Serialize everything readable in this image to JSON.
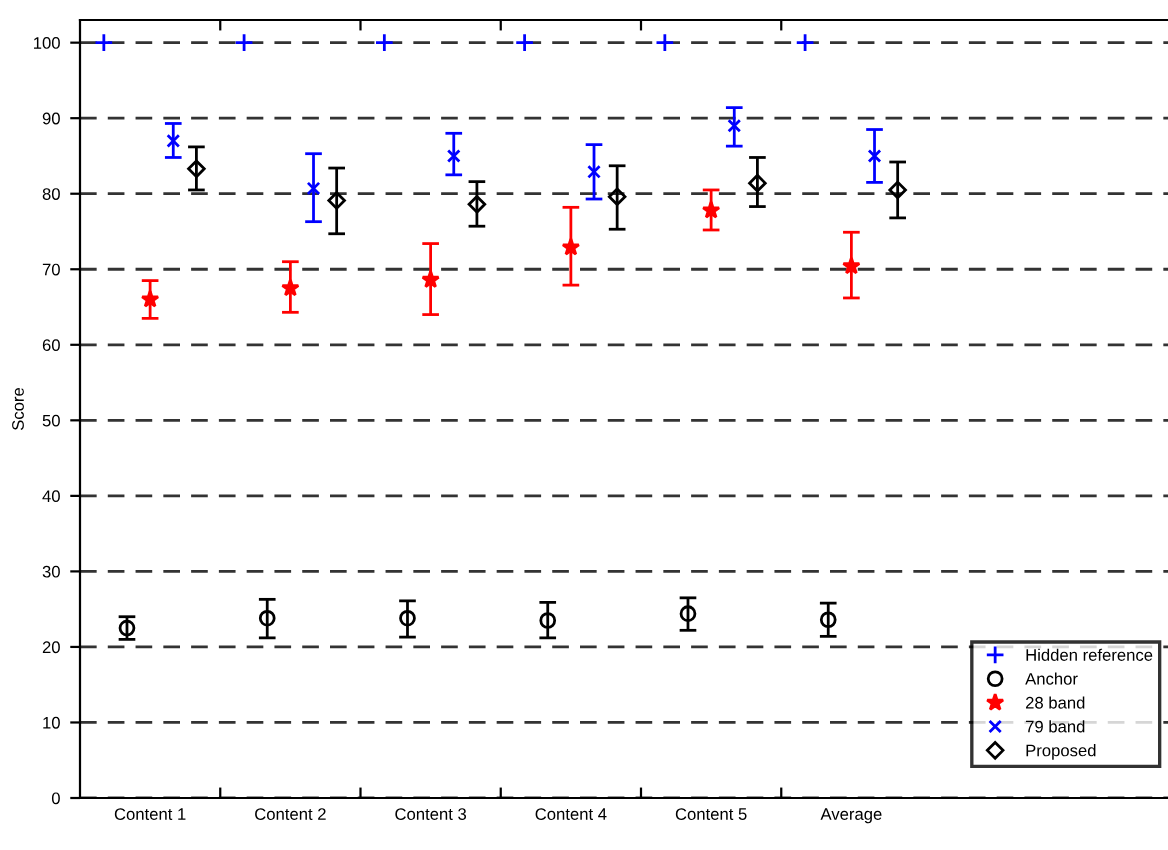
{
  "chart_data": {
    "type": "scatter",
    "ylabel": "Score",
    "categories": [
      "Content 1",
      "Content 2",
      "Content 3",
      "Content 4",
      "Content 5",
      "Average"
    ],
    "series": [
      {
        "name": "Hidden reference",
        "color": "#0000ff",
        "marker": "cross",
        "values": [
          100,
          100,
          100,
          100,
          100,
          100
        ]
      },
      {
        "name": "Anchor",
        "color": "#000000",
        "marker": "circle",
        "values": [
          22.5,
          23.8,
          23.8,
          23.5,
          24.4,
          23.6
        ],
        "errors": [
          [
            21,
            24
          ],
          [
            21.2,
            26.3
          ],
          [
            21.3,
            26.1
          ],
          [
            21.2,
            25.9
          ],
          [
            22.2,
            26.5
          ],
          [
            21.4,
            25.8
          ]
        ]
      },
      {
        "name": "28 band",
        "color": "#ff0000",
        "marker": "star",
        "values": [
          66,
          67.5,
          68.6,
          72.9,
          77.8,
          70.4
        ],
        "errors": [
          [
            63.5,
            68.5
          ],
          [
            64.3,
            71
          ],
          [
            64,
            73.4
          ],
          [
            67.9,
            78.2
          ],
          [
            75.2,
            80.5
          ],
          [
            66.2,
            74.9
          ]
        ]
      },
      {
        "name": "79 band",
        "color": "#0000ff",
        "marker": "x",
        "values": [
          87,
          80.7,
          85,
          82.9,
          89,
          85
        ],
        "errors": [
          [
            84.8,
            89.3
          ],
          [
            76.3,
            85.3
          ],
          [
            82.5,
            88
          ],
          [
            79.3,
            86.5
          ],
          [
            86.3,
            91.4
          ],
          [
            81.5,
            88.5
          ]
        ]
      },
      {
        "name": "Proposed",
        "color": "#000000",
        "marker": "diamond",
        "values": [
          83.3,
          79.1,
          78.6,
          79.6,
          81.4,
          80.5
        ],
        "errors": [
          [
            80.5,
            86.2
          ],
          [
            74.7,
            83.4
          ],
          [
            75.7,
            81.6
          ],
          [
            75.3,
            83.7
          ],
          [
            78.3,
            84.8
          ],
          [
            76.8,
            84.2
          ]
        ]
      }
    ],
    "ylim": [
      0,
      103
    ],
    "yticks": [
      0,
      10,
      20,
      30,
      40,
      50,
      60,
      70,
      80,
      90,
      100
    ],
    "grid": "y",
    "legend": "bottom right"
  }
}
